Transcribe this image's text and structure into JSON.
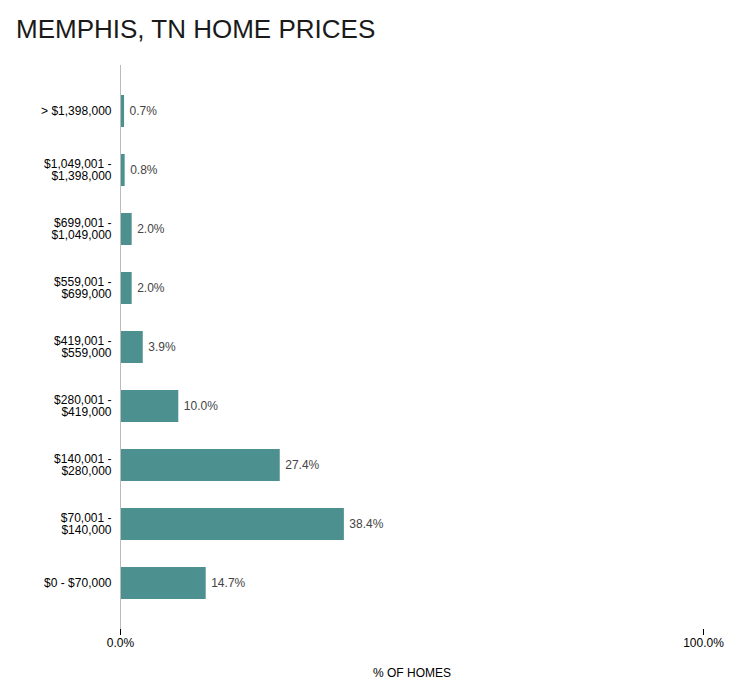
{
  "chart_data": {
    "type": "bar",
    "orientation": "horizontal",
    "title": "MEMPHIS, TN HOME PRICES",
    "categories": [
      "> $1,398,000",
      "$1,049,001 -\n$1,398,000",
      "$699,001 -\n$1,049,000",
      "$559,001 -\n$699,000",
      "$419,001 -\n$559,000",
      "$280,001 -\n$419,000",
      "$140,001 -\n$280,000",
      "$70,001 -\n$140,000",
      "$0 - $70,000"
    ],
    "values": [
      0.7,
      0.8,
      2.0,
      2.0,
      3.9,
      10.0,
      27.4,
      38.4,
      14.7
    ],
    "value_labels": [
      "0.7%",
      "0.8%",
      "2.0%",
      "2.0%",
      "3.9%",
      "10.0%",
      "27.4%",
      "38.4%",
      "14.7%"
    ],
    "data_labels": true,
    "color": "#4d9090",
    "xlabel": "% OF HOMES",
    "xlim": [
      0,
      100
    ],
    "xticks": [
      {
        "value": 0,
        "label": "0.0%"
      },
      {
        "value": 100,
        "label": "100.0%"
      }
    ],
    "grid": false
  }
}
